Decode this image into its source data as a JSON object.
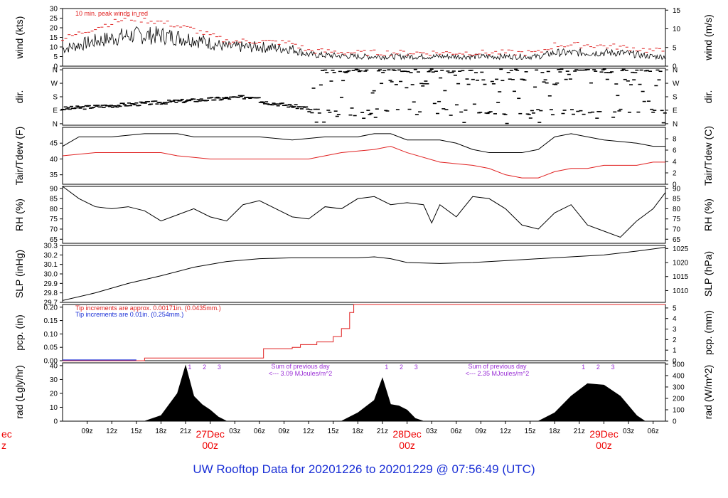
{
  "title": "UW Rooftop Data for 20201226  to  20201229 @ 07:56:49  (UTC)",
  "colors": {
    "main": "#000000",
    "peak": "#e02020",
    "dew": "#e02020",
    "blue": "#1a2fd6",
    "purple": "#9a2fd6"
  },
  "x_axis": {
    "ticks": [
      "09z",
      "12z",
      "15z",
      "18z",
      "21z",
      "03z",
      "06z",
      "09z",
      "12z",
      "15z",
      "18z",
      "21z",
      "03z",
      "06z",
      "09z",
      "12z",
      "15z",
      "18z",
      "21z",
      "03z",
      "06z"
    ],
    "day_labels": [
      {
        "date": "27Dec",
        "time": "00z"
      },
      {
        "date": "28Dec",
        "time": "00z"
      },
      {
        "date": "29Dec",
        "time": "00z"
      }
    ],
    "left_partial": {
      "date": "ec",
      "time": "z"
    }
  },
  "panels": {
    "wind": {
      "ylabel_left": "wind (kts)",
      "ylabel_right": "wind (m/s)",
      "ticks_left": [
        "30",
        "25",
        "20",
        "15",
        "10",
        "5",
        "0"
      ],
      "ticks_right": [
        "15",
        "10",
        "5",
        "0"
      ],
      "note": "10 min. peak winds in red",
      "ylim": [
        0,
        30
      ]
    },
    "dir": {
      "ylabel_left": "dir.",
      "ylabel_right": "dir.",
      "ticks": [
        "N",
        "W",
        "S",
        "E",
        "N"
      ]
    },
    "temp": {
      "ylabel_left": "Tair/Tdew (F)",
      "ylabel_right": "Tair/Tdew (C)",
      "ticks_left": [
        "45",
        "40",
        "35"
      ],
      "ticks_right": [
        "8",
        "6",
        "4",
        "2",
        "0"
      ]
    },
    "rh": {
      "ylabel_left": "RH (%)",
      "ylabel_right": "RH (%)",
      "ticks": [
        "90",
        "85",
        "80",
        "75",
        "70",
        "65"
      ]
    },
    "slp": {
      "ylabel_left": "SLP (inHg)",
      "ylabel_right": "SLP (hPa)",
      "ticks_left": [
        "30.3",
        "30.2",
        "30.1",
        "30.0",
        "29.9",
        "29.8",
        "29.7"
      ],
      "ticks_right": [
        "1025",
        "1020",
        "1015",
        "1010"
      ]
    },
    "pcp": {
      "ylabel_left": "pcp. (in)",
      "ylabel_right": "pcp. (mm)",
      "ticks_left": [
        "0.20",
        "0.15",
        "0.10",
        "0.05",
        "0.00"
      ],
      "ticks_right": [
        "5",
        "4",
        "3",
        "2",
        "1",
        "0"
      ],
      "note_red": "Tip increments are approx. 0.00171in. (0.0435mm.)",
      "note_blue": "Tip increments are 0.01in. (0.254mm.)"
    },
    "rad": {
      "ylabel_left": "rad (Lgly/hr)",
      "ylabel_right": "rad (W/m^2)",
      "ticks_left": [
        "40",
        "30",
        "20",
        "10",
        "0"
      ],
      "ticks_right": [
        "500",
        "400",
        "300",
        "200",
        "100",
        "0"
      ],
      "hour_marks": [
        "1",
        "2",
        "3"
      ],
      "sum_label": "Sum of previous day",
      "sum_values": [
        "<--- 3.09 MJoules/m^2",
        "<--- 2.35 MJoules/m^2"
      ]
    }
  },
  "chart_data": {
    "type": "line",
    "x_unit": "hours since 2020-12-26 06z",
    "x_range": [
      0,
      73.5
    ],
    "series": [
      {
        "name": "wind",
        "unit": "kts",
        "points": [
          [
            0,
            9
          ],
          [
            4,
            13
          ],
          [
            8,
            16
          ],
          [
            12,
            16
          ],
          [
            16,
            14
          ],
          [
            20,
            10
          ],
          [
            24,
            10
          ],
          [
            28,
            9
          ],
          [
            30,
            6
          ],
          [
            36,
            5
          ],
          [
            42,
            5
          ],
          [
            48,
            5
          ],
          [
            54,
            5
          ],
          [
            58,
            5
          ],
          [
            60,
            7
          ],
          [
            64,
            7
          ],
          [
            68,
            7
          ],
          [
            72,
            5
          ],
          [
            73.5,
            5
          ]
        ]
      },
      {
        "name": "peak wind",
        "unit": "kts",
        "points": [
          [
            0,
            14
          ],
          [
            4,
            20
          ],
          [
            8,
            25
          ],
          [
            12,
            23
          ],
          [
            16,
            19
          ],
          [
            20,
            13
          ],
          [
            24,
            13
          ],
          [
            28,
            12
          ],
          [
            30,
            8
          ],
          [
            36,
            7
          ],
          [
            42,
            7
          ],
          [
            48,
            7
          ],
          [
            54,
            7
          ],
          [
            58,
            7
          ],
          [
            60,
            11
          ],
          [
            64,
            11
          ],
          [
            68,
            10
          ],
          [
            72,
            8
          ],
          [
            73.5,
            8
          ]
        ]
      },
      {
        "name": "Tair",
        "unit": "F",
        "points": [
          [
            0,
            44
          ],
          [
            2,
            47
          ],
          [
            6,
            47
          ],
          [
            10,
            48
          ],
          [
            14,
            48
          ],
          [
            16,
            47
          ],
          [
            20,
            47
          ],
          [
            24,
            47
          ],
          [
            28,
            46
          ],
          [
            32,
            47
          ],
          [
            36,
            47
          ],
          [
            38,
            48
          ],
          [
            40,
            48
          ],
          [
            42,
            46
          ],
          [
            46,
            46
          ],
          [
            48,
            45
          ],
          [
            50,
            43
          ],
          [
            52,
            42
          ],
          [
            54,
            42
          ],
          [
            56,
            42
          ],
          [
            58,
            43
          ],
          [
            60,
            47
          ],
          [
            62,
            48
          ],
          [
            64,
            47
          ],
          [
            66,
            46
          ],
          [
            70,
            45
          ],
          [
            72,
            44
          ],
          [
            73.5,
            44
          ]
        ]
      },
      {
        "name": "Tdew",
        "unit": "F",
        "points": [
          [
            0,
            41
          ],
          [
            4,
            42
          ],
          [
            8,
            42
          ],
          [
            12,
            42
          ],
          [
            14,
            41
          ],
          [
            18,
            40
          ],
          [
            22,
            40
          ],
          [
            26,
            40
          ],
          [
            30,
            40
          ],
          [
            34,
            42
          ],
          [
            38,
            43
          ],
          [
            40,
            44
          ],
          [
            42,
            42
          ],
          [
            46,
            39
          ],
          [
            50,
            38
          ],
          [
            52,
            37
          ],
          [
            54,
            35
          ],
          [
            56,
            34
          ],
          [
            58,
            34
          ],
          [
            60,
            36
          ],
          [
            62,
            37
          ],
          [
            64,
            37
          ],
          [
            66,
            38
          ],
          [
            70,
            38
          ],
          [
            72,
            39
          ],
          [
            73.5,
            39
          ]
        ]
      },
      {
        "name": "RH",
        "unit": "%",
        "points": [
          [
            0,
            91
          ],
          [
            2,
            85
          ],
          [
            4,
            81
          ],
          [
            6,
            80
          ],
          [
            8,
            81
          ],
          [
            10,
            79
          ],
          [
            12,
            74
          ],
          [
            14,
            77
          ],
          [
            16,
            80
          ],
          [
            18,
            76
          ],
          [
            20,
            74
          ],
          [
            22,
            82
          ],
          [
            24,
            84
          ],
          [
            26,
            80
          ],
          [
            28,
            76
          ],
          [
            30,
            75
          ],
          [
            32,
            81
          ],
          [
            34,
            80
          ],
          [
            36,
            85
          ],
          [
            38,
            86
          ],
          [
            40,
            82
          ],
          [
            42,
            83
          ],
          [
            44,
            82
          ],
          [
            45,
            73
          ],
          [
            46,
            82
          ],
          [
            48,
            76
          ],
          [
            50,
            86
          ],
          [
            52,
            85
          ],
          [
            54,
            80
          ],
          [
            56,
            72
          ],
          [
            58,
            70
          ],
          [
            60,
            78
          ],
          [
            62,
            82
          ],
          [
            64,
            72
          ],
          [
            66,
            69
          ],
          [
            68,
            66
          ],
          [
            70,
            74
          ],
          [
            72,
            80
          ],
          [
            73.5,
            88
          ]
        ]
      },
      {
        "name": "SLP",
        "unit": "inHg",
        "points": [
          [
            0,
            29.72
          ],
          [
            4,
            29.8
          ],
          [
            8,
            29.9
          ],
          [
            12,
            29.98
          ],
          [
            16,
            30.07
          ],
          [
            20,
            30.13
          ],
          [
            24,
            30.16
          ],
          [
            28,
            30.17
          ],
          [
            32,
            30.17
          ],
          [
            36,
            30.17
          ],
          [
            38,
            30.18
          ],
          [
            40,
            30.16
          ],
          [
            42,
            30.12
          ],
          [
            46,
            30.11
          ],
          [
            50,
            30.12
          ],
          [
            54,
            30.14
          ],
          [
            58,
            30.16
          ],
          [
            62,
            30.18
          ],
          [
            66,
            30.2
          ],
          [
            70,
            30.24
          ],
          [
            73.5,
            30.28
          ]
        ]
      },
      {
        "name": "pcp",
        "unit": "in",
        "points": [
          [
            0,
            0
          ],
          [
            9,
            0
          ],
          [
            10,
            0.01
          ],
          [
            24,
            0.01
          ],
          [
            24.5,
            0.045
          ],
          [
            28,
            0.05
          ],
          [
            29,
            0.06
          ],
          [
            31,
            0.07
          ],
          [
            33,
            0.09
          ],
          [
            34,
            0.12
          ],
          [
            35,
            0.18
          ],
          [
            35.5,
            0.21
          ],
          [
            73.5,
            0.21
          ]
        ]
      },
      {
        "name": "rad",
        "unit": "Lgly/hr",
        "points": [
          [
            0,
            0
          ],
          [
            10,
            0
          ],
          [
            12,
            4
          ],
          [
            14,
            20
          ],
          [
            15,
            40
          ],
          [
            16,
            18
          ],
          [
            17,
            12
          ],
          [
            18,
            8
          ],
          [
            19,
            3
          ],
          [
            20,
            0
          ],
          [
            34,
            0
          ],
          [
            36,
            6
          ],
          [
            38,
            15
          ],
          [
            39,
            31
          ],
          [
            40,
            12
          ],
          [
            41,
            11
          ],
          [
            42,
            8
          ],
          [
            43,
            2
          ],
          [
            44,
            0
          ],
          [
            58,
            0
          ],
          [
            60,
            6
          ],
          [
            62,
            18
          ],
          [
            64,
            27
          ],
          [
            66,
            26
          ],
          [
            68,
            18
          ],
          [
            70,
            4
          ],
          [
            71,
            0
          ],
          [
            73.5,
            0
          ]
        ]
      }
    ]
  }
}
